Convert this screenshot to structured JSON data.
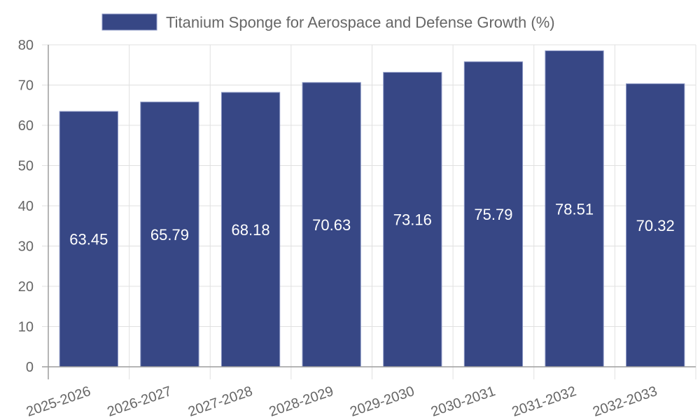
{
  "chart_data": {
    "type": "bar",
    "title": "",
    "xlabel": "",
    "ylabel": "",
    "categories": [
      "2025-2026",
      "2026-2027",
      "2027-2028",
      "2028-2029",
      "2029-2030",
      "2030-2031",
      "2031-2032",
      "2032-2033"
    ],
    "series": [
      {
        "name": "Titanium Sponge for Aerospace and Defense Growth (%)",
        "values": [
          63.45,
          65.79,
          68.18,
          70.63,
          73.16,
          75.79,
          78.51,
          70.32
        ],
        "color": "#374785",
        "border_color": "#8a96c4"
      }
    ],
    "data_labels": [
      "63.45",
      "65.79",
      "68.18",
      "70.63",
      "73.16",
      "75.79",
      "78.51",
      "70.32"
    ],
    "ylim": [
      0,
      80
    ],
    "yticks": [
      0,
      10,
      20,
      30,
      40,
      50,
      60,
      70,
      80
    ],
    "ytick_labels": [
      "0",
      "10",
      "20",
      "30",
      "40",
      "50",
      "60",
      "70",
      "80"
    ],
    "grid": true,
    "legend": {
      "position": "top-center",
      "entries": [
        "Titanium Sponge for Aerospace and Defense Growth (%)"
      ]
    },
    "colors": {
      "grid": "#e0e0e0",
      "axis": "#9e9e9e",
      "text": "#666666"
    }
  }
}
